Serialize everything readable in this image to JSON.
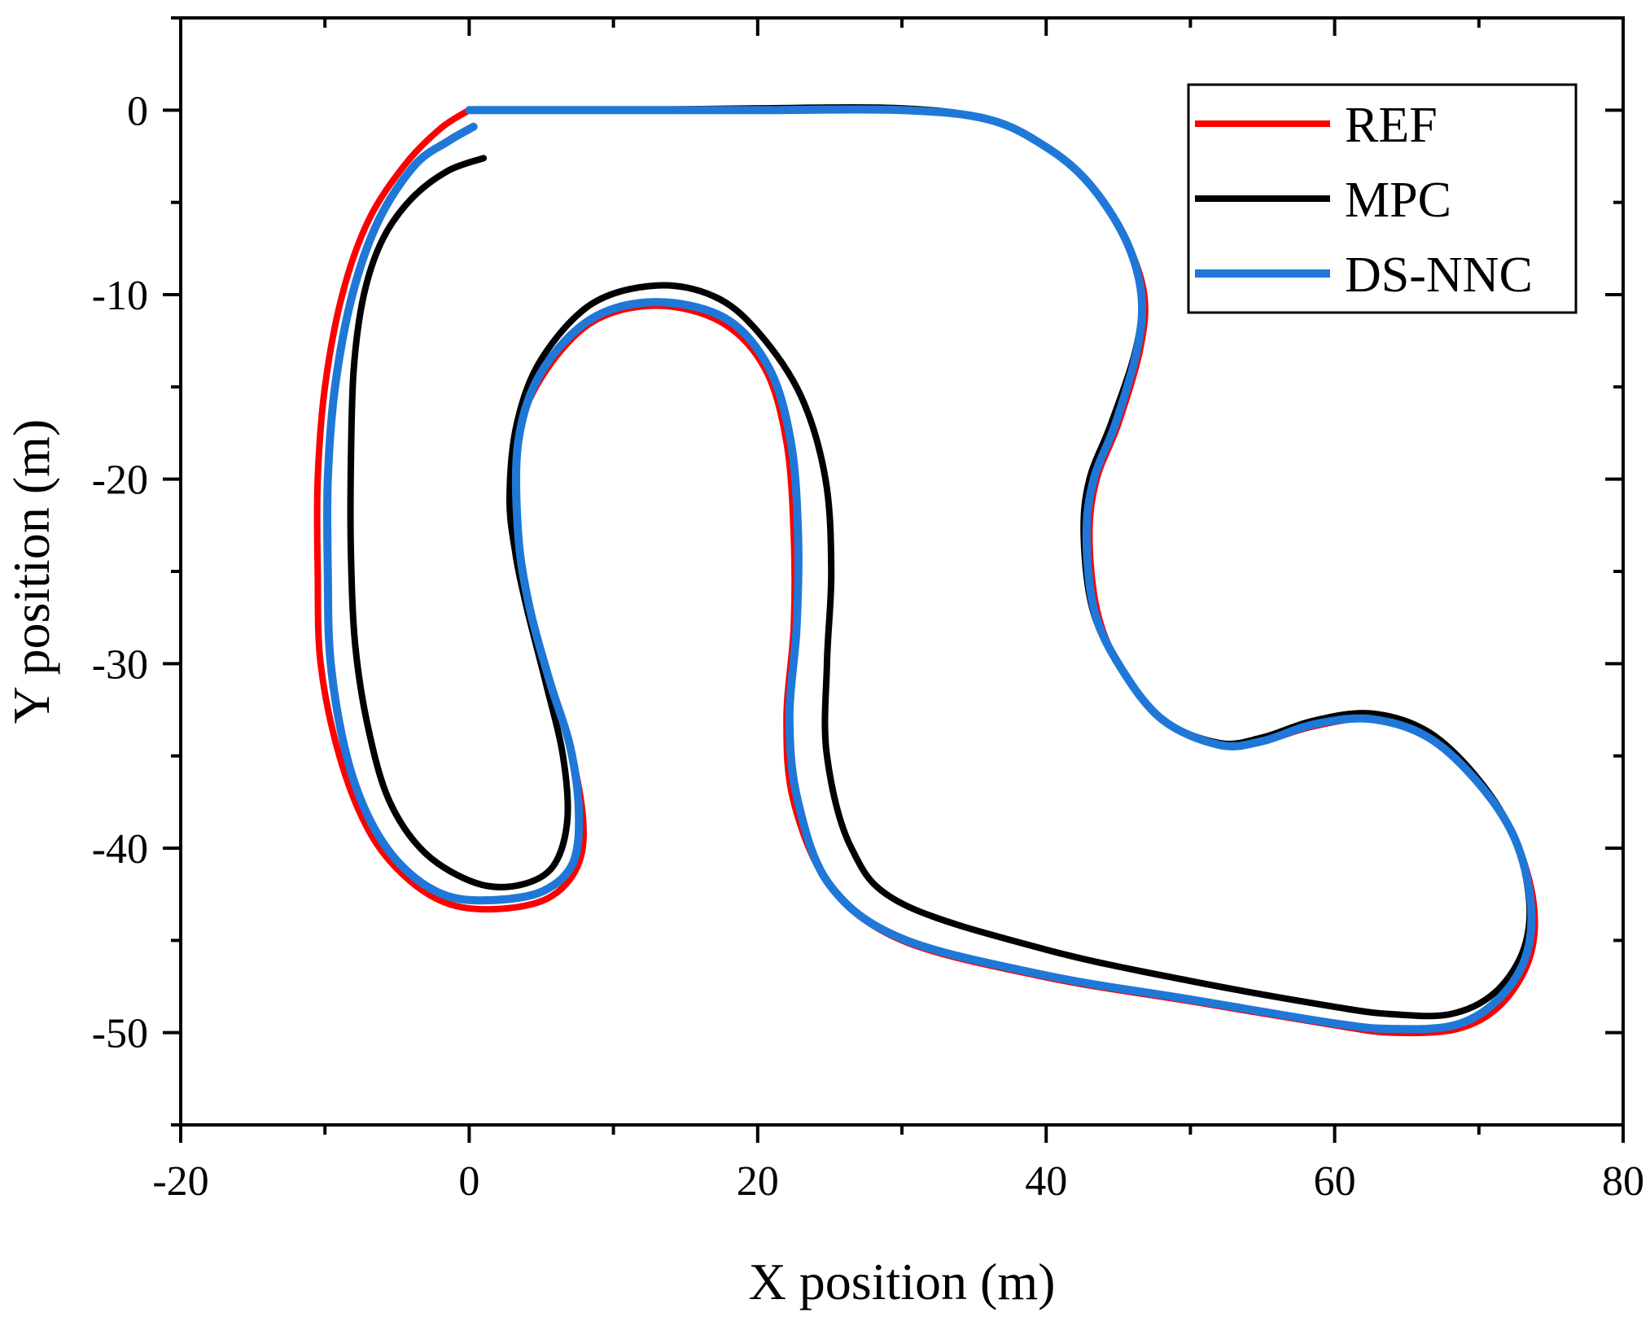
{
  "chart_data": {
    "type": "line",
    "xlabel": "X position (m)",
    "ylabel": "Y position (m)",
    "xlim": [
      -20,
      80
    ],
    "ylim": [
      -55,
      5
    ],
    "xticks": [
      -20,
      0,
      20,
      40,
      60,
      80
    ],
    "yticks": [
      0,
      -10,
      -20,
      -30,
      -40,
      -50
    ],
    "grid": false,
    "legend": {
      "placement": "top-right"
    },
    "series": [
      {
        "name": "REF",
        "color": "#ff0000",
        "points": [
          [
            0,
            0
          ],
          [
            10,
            0
          ],
          [
            20,
            0
          ],
          [
            30,
            0
          ],
          [
            36,
            -0.5
          ],
          [
            40,
            -2
          ],
          [
            43,
            -4
          ],
          [
            45.5,
            -7
          ],
          [
            46.8,
            -10
          ],
          [
            46.5,
            -13
          ],
          [
            45,
            -17
          ],
          [
            43.5,
            -20
          ],
          [
            43,
            -23
          ],
          [
            43.5,
            -27
          ],
          [
            45,
            -30
          ],
          [
            48,
            -33
          ],
          [
            52,
            -34.4
          ],
          [
            55,
            -34.2
          ],
          [
            58.5,
            -33.4
          ],
          [
            62.5,
            -33
          ],
          [
            66.5,
            -34
          ],
          [
            70,
            -36.5
          ],
          [
            72.5,
            -39.5
          ],
          [
            73.8,
            -43
          ],
          [
            73.5,
            -46
          ],
          [
            71.5,
            -48.5
          ],
          [
            68.5,
            -49.8
          ],
          [
            64,
            -50
          ],
          [
            60,
            -49.6
          ],
          [
            50,
            -48.3
          ],
          [
            40,
            -47
          ],
          [
            30,
            -45
          ],
          [
            25,
            -42
          ],
          [
            22.5,
            -37.5
          ],
          [
            22,
            -33
          ],
          [
            22.5,
            -28
          ],
          [
            22.5,
            -23
          ],
          [
            22,
            -18
          ],
          [
            20.5,
            -14
          ],
          [
            17.5,
            -11.5
          ],
          [
            13,
            -10.6
          ],
          [
            8.5,
            -11.5
          ],
          [
            5,
            -14.5
          ],
          [
            3.3,
            -18
          ],
          [
            3.2,
            -23
          ],
          [
            4,
            -27
          ],
          [
            5.5,
            -31
          ],
          [
            7,
            -34.5
          ],
          [
            7.9,
            -38.5
          ],
          [
            7.5,
            -41
          ],
          [
            5.5,
            -42.7
          ],
          [
            2,
            -43.3
          ],
          [
            -1.5,
            -43
          ],
          [
            -4.5,
            -41.5
          ],
          [
            -7,
            -39
          ],
          [
            -9,
            -35
          ],
          [
            -10.3,
            -30
          ],
          [
            -10.5,
            -25
          ],
          [
            -10.5,
            -20
          ],
          [
            -10,
            -15
          ],
          [
            -8.8,
            -10
          ],
          [
            -7,
            -6
          ],
          [
            -4.5,
            -3
          ],
          [
            -2,
            -1
          ],
          [
            0,
            0
          ]
        ]
      },
      {
        "name": "MPC",
        "color": "#000000",
        "points": [
          [
            0,
            0
          ],
          [
            10,
            0
          ],
          [
            20,
            0.1
          ],
          [
            30,
            0.1
          ],
          [
            36,
            -0.5
          ],
          [
            40,
            -2
          ],
          [
            43,
            -4
          ],
          [
            45.5,
            -7
          ],
          [
            46.6,
            -10
          ],
          [
            46.2,
            -13
          ],
          [
            44.5,
            -17
          ],
          [
            43,
            -20
          ],
          [
            42.6,
            -23
          ],
          [
            43.2,
            -27
          ],
          [
            45,
            -30
          ],
          [
            48,
            -33
          ],
          [
            52,
            -34.3
          ],
          [
            55,
            -34
          ],
          [
            58.5,
            -33.1
          ],
          [
            62.5,
            -32.7
          ],
          [
            66.5,
            -33.7
          ],
          [
            70,
            -36.3
          ],
          [
            72.5,
            -39.5
          ],
          [
            73.5,
            -43
          ],
          [
            73,
            -45.7
          ],
          [
            71,
            -47.9
          ],
          [
            68,
            -49
          ],
          [
            64,
            -49
          ],
          [
            60,
            -48.6
          ],
          [
            50,
            -47.2
          ],
          [
            40,
            -45.5
          ],
          [
            30,
            -43
          ],
          [
            26.5,
            -40
          ],
          [
            24.8,
            -35
          ],
          [
            24.8,
            -30
          ],
          [
            25.1,
            -25
          ],
          [
            24.7,
            -20
          ],
          [
            23,
            -15.5
          ],
          [
            20,
            -12
          ],
          [
            17,
            -10.1
          ],
          [
            13,
            -9.5
          ],
          [
            8.5,
            -10.5
          ],
          [
            5,
            -13.5
          ],
          [
            3.3,
            -17
          ],
          [
            2.8,
            -21
          ],
          [
            3.2,
            -24
          ],
          [
            4,
            -27
          ],
          [
            5.3,
            -31
          ],
          [
            6.5,
            -35
          ],
          [
            6.8,
            -38.5
          ],
          [
            5.8,
            -41
          ],
          [
            3.5,
            -42
          ],
          [
            0.5,
            -41.9
          ],
          [
            -3,
            -40.3
          ],
          [
            -5.5,
            -37.5
          ],
          [
            -7,
            -33.5
          ],
          [
            -7.9,
            -29
          ],
          [
            -8.2,
            -24
          ],
          [
            -8.2,
            -19
          ],
          [
            -8,
            -14
          ],
          [
            -7.3,
            -10
          ],
          [
            -6,
            -7
          ],
          [
            -4,
            -4.8
          ],
          [
            -1.5,
            -3.3
          ],
          [
            1,
            -2.6
          ]
        ]
      },
      {
        "name": "DS-NNC",
        "color": "#1f78d8",
        "points": [
          [
            0,
            0
          ],
          [
            10,
            0
          ],
          [
            20,
            0
          ],
          [
            30,
            0
          ],
          [
            36,
            -0.5
          ],
          [
            40,
            -2
          ],
          [
            43,
            -4
          ],
          [
            45.5,
            -7
          ],
          [
            46.6,
            -10
          ],
          [
            46.3,
            -13
          ],
          [
            44.8,
            -17
          ],
          [
            43.3,
            -20
          ],
          [
            42.8,
            -23
          ],
          [
            43.3,
            -27
          ],
          [
            45,
            -30
          ],
          [
            48,
            -33
          ],
          [
            52,
            -34.4
          ],
          [
            55,
            -34.2
          ],
          [
            58.5,
            -33.3
          ],
          [
            62.5,
            -33
          ],
          [
            66.5,
            -34
          ],
          [
            70,
            -36.5
          ],
          [
            72.5,
            -39.5
          ],
          [
            73.6,
            -43
          ],
          [
            73.2,
            -46
          ],
          [
            71.2,
            -48.3
          ],
          [
            68.3,
            -49.6
          ],
          [
            64,
            -49.8
          ],
          [
            60,
            -49.5
          ],
          [
            50,
            -48.2
          ],
          [
            40,
            -46.9
          ],
          [
            30,
            -44.9
          ],
          [
            25,
            -42
          ],
          [
            22.8,
            -37.5
          ],
          [
            22.2,
            -33
          ],
          [
            22.7,
            -28
          ],
          [
            22.8,
            -23
          ],
          [
            22.3,
            -18
          ],
          [
            20.8,
            -14
          ],
          [
            17.8,
            -11.3
          ],
          [
            13,
            -10.4
          ],
          [
            8.5,
            -11.3
          ],
          [
            5,
            -14.2
          ],
          [
            3.4,
            -18
          ],
          [
            3.4,
            -23
          ],
          [
            4.2,
            -27
          ],
          [
            5.6,
            -31
          ],
          [
            7,
            -34.5
          ],
          [
            7.6,
            -38
          ],
          [
            7.2,
            -40.8
          ],
          [
            5.2,
            -42.3
          ],
          [
            2,
            -42.8
          ],
          [
            -1.5,
            -42.6
          ],
          [
            -4.5,
            -41.1
          ],
          [
            -6.8,
            -38.6
          ],
          [
            -8.5,
            -35
          ],
          [
            -9.6,
            -30
          ],
          [
            -9.8,
            -25
          ],
          [
            -9.8,
            -20
          ],
          [
            -9.3,
            -15
          ],
          [
            -8.1,
            -10
          ],
          [
            -6.3,
            -6
          ],
          [
            -3.8,
            -3
          ],
          [
            -1.5,
            -1.7
          ],
          [
            0.3,
            -0.9
          ]
        ]
      }
    ]
  }
}
